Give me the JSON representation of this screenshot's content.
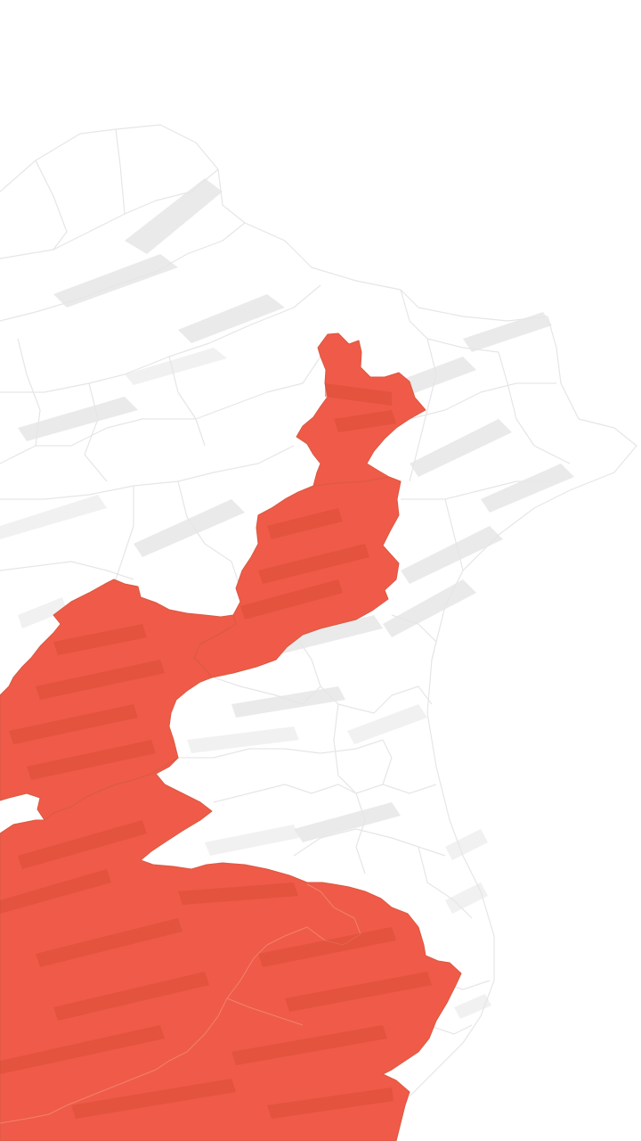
{
  "map": {
    "basemap_style": "grey-relief",
    "highlight_color": "#ef5b48",
    "highlight_dark": "#d94c36",
    "border_color": "#e6e6e6",
    "background_color": "#ffffff",
    "highlighted_regions": [
      "northern-lobe",
      "central-corridor",
      "western-lobe",
      "southern-block"
    ]
  }
}
